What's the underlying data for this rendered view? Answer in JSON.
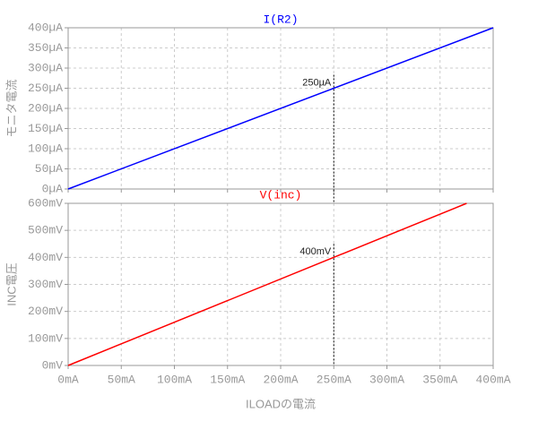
{
  "chart_data": [
    {
      "type": "line",
      "ylabel": "モニタ電流",
      "series": [
        {
          "name": "I(R2)",
          "color": "#0000ff",
          "x": [
            0,
            400
          ],
          "values": [
            0,
            400
          ]
        }
      ],
      "xlim": [
        0,
        400
      ],
      "ylim": [
        0,
        400
      ],
      "yticks": [
        {
          "value": 0,
          "label": "0µA"
        },
        {
          "value": 50,
          "label": "50µA"
        },
        {
          "value": 100,
          "label": "100µA"
        },
        {
          "value": 150,
          "label": "150µA"
        },
        {
          "value": 200,
          "label": "200µA"
        },
        {
          "value": 250,
          "label": "250µA"
        },
        {
          "value": 300,
          "label": "300µA"
        },
        {
          "value": 350,
          "label": "350µA"
        },
        {
          "value": 400,
          "label": "400µA"
        }
      ],
      "grid": true,
      "annotations": [
        {
          "text": "250µA",
          "x": 250,
          "y": 250
        }
      ]
    },
    {
      "type": "line",
      "ylabel": "INC電圧",
      "xlabel": "ILOADの電流",
      "series": [
        {
          "name": "V(inc)",
          "color": "#ff0000",
          "x": [
            0,
            375
          ],
          "values": [
            0,
            600
          ]
        }
      ],
      "xlim": [
        0,
        400
      ],
      "xticks": [
        {
          "value": 0,
          "label": "0mA"
        },
        {
          "value": 50,
          "label": "50mA"
        },
        {
          "value": 100,
          "label": "100mA"
        },
        {
          "value": 150,
          "label": "150mA"
        },
        {
          "value": 200,
          "label": "200mA"
        },
        {
          "value": 250,
          "label": "250mA"
        },
        {
          "value": 300,
          "label": "300mA"
        },
        {
          "value": 350,
          "label": "350mA"
        },
        {
          "value": 400,
          "label": "400mA"
        }
      ],
      "ylim": [
        0,
        600
      ],
      "yticks": [
        {
          "value": 0,
          "label": "0mV"
        },
        {
          "value": 100,
          "label": "100mV"
        },
        {
          "value": 200,
          "label": "200mV"
        },
        {
          "value": 300,
          "label": "300mV"
        },
        {
          "value": 400,
          "label": "400mV"
        },
        {
          "value": 500,
          "label": "500mV"
        },
        {
          "value": 600,
          "label": "600mV"
        }
      ],
      "grid": true,
      "annotations": [
        {
          "text": "400mV",
          "x": 250,
          "y": 400
        }
      ]
    }
  ]
}
